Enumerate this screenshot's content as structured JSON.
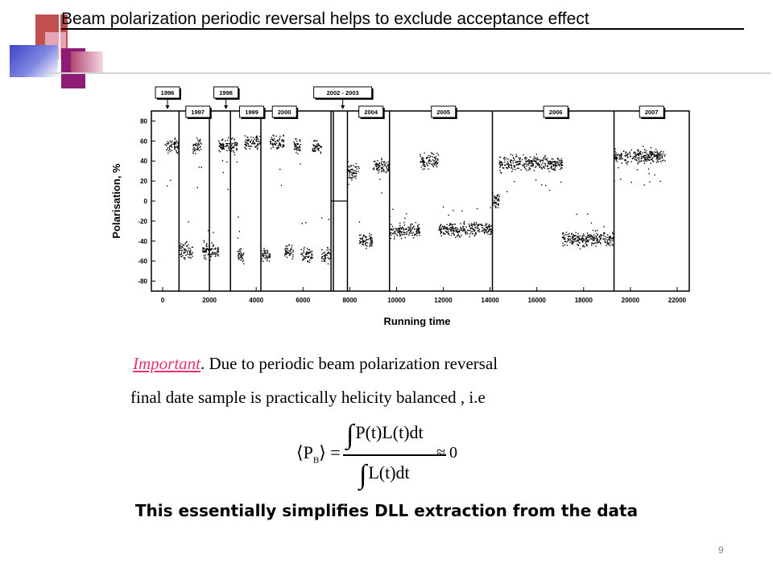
{
  "slide": {
    "title": "Beam polarization  periodic reversal helps to exclude acceptance effect",
    "important_word": "Important",
    "important_rest": ". Due to periodic beam polarization reversal",
    "final_line": "final date sample  is practically  helicity balanced , i.e",
    "formula": {
      "lhs": "P",
      "lhs_sub": "B",
      "numerator": "P(t)L(t)dt",
      "denominator": "L(t)dt",
      "rhs": "≈  0"
    },
    "conclusion": "This essentially simplifies DLL extraction from the data",
    "page_number": "9"
  },
  "colors": {
    "deco_red": "#c0504d",
    "deco_pink": "#e6a4b4",
    "deco_purple": "#8e1b74",
    "deco_blue": "#3b45c8",
    "deco_line": "#c8c8c8",
    "important": "#e8336d"
  },
  "chart_data": {
    "type": "scatter",
    "xlabel": "Running time",
    "ylabel": "Polarisation, %",
    "xlim": [
      0,
      22000
    ],
    "ylim": [
      -90,
      90
    ],
    "x_ticks": [
      "0",
      "2000",
      "4000",
      "6000",
      "8000",
      "10000",
      "12000",
      "14000",
      "16000",
      "18000",
      "20000",
      "22000"
    ],
    "y_ticks": [
      "80",
      "60",
      "40",
      "20",
      "0",
      "-20",
      "-40",
      "-60",
      "-80"
    ],
    "year_labels": [
      {
        "text": "1996",
        "x": 0
      },
      {
        "text": "1997",
        "x": 1300
      },
      {
        "text": "1998",
        "x": 2500
      },
      {
        "text": "1999",
        "x": 3600
      },
      {
        "text": "2000",
        "x": 5000
      },
      {
        "text": "2002 - 2003",
        "x": 7700
      },
      {
        "text": "2004",
        "x": 8700
      },
      {
        "text": "2005",
        "x": 11800
      },
      {
        "text": "2006",
        "x": 16600
      },
      {
        "text": "2007",
        "x": 20700
      }
    ],
    "period_boundaries": [
      700,
      2000,
      2900,
      4200,
      7200,
      7300,
      7900,
      9700,
      14100,
      19300
    ],
    "segments": [
      {
        "x": [
          100,
          700
        ],
        "y": 55
      },
      {
        "x": [
          700,
          1300
        ],
        "y": -50
      },
      {
        "x": [
          1300,
          1700
        ],
        "y": 55
      },
      {
        "x": [
          1700,
          2000
        ],
        "y": -50
      },
      {
        "x": [
          2000,
          2400
        ],
        "y": -50
      },
      {
        "x": [
          2400,
          2900
        ],
        "y": 55
      },
      {
        "x": [
          2900,
          3200
        ],
        "y": 55
      },
      {
        "x": [
          3200,
          3500
        ],
        "y": -55
      },
      {
        "x": [
          3500,
          4200
        ],
        "y": 58
      },
      {
        "x": [
          4200,
          4600
        ],
        "y": -55
      },
      {
        "x": [
          4600,
          5200
        ],
        "y": 58
      },
      {
        "x": [
          5200,
          5600
        ],
        "y": -50
      },
      {
        "x": [
          5600,
          5900
        ],
        "y": 55
      },
      {
        "x": [
          5900,
          6400
        ],
        "y": -55
      },
      {
        "x": [
          6400,
          6800
        ],
        "y": 55
      },
      {
        "x": [
          6800,
          7200
        ],
        "y": -55
      },
      {
        "x": [
          7900,
          8400
        ],
        "y": 30
      },
      {
        "x": [
          8400,
          9000
        ],
        "y": -40
      },
      {
        "x": [
          9000,
          9700
        ],
        "y": 35
      },
      {
        "x": [
          9700,
          11000
        ],
        "y": -30
      },
      {
        "x": [
          11000,
          11800
        ],
        "y": 40
      },
      {
        "x": [
          11800,
          13500
        ],
        "y": -28
      },
      {
        "x": [
          13500,
          14100
        ],
        "y": -28
      },
      {
        "x": [
          14100,
          14400
        ],
        "y": 0
      },
      {
        "x": [
          14400,
          17100
        ],
        "y": 38
      },
      {
        "x": [
          17100,
          19300
        ],
        "y": -38
      },
      {
        "x": [
          19300,
          21500
        ],
        "y": 45
      }
    ]
  }
}
